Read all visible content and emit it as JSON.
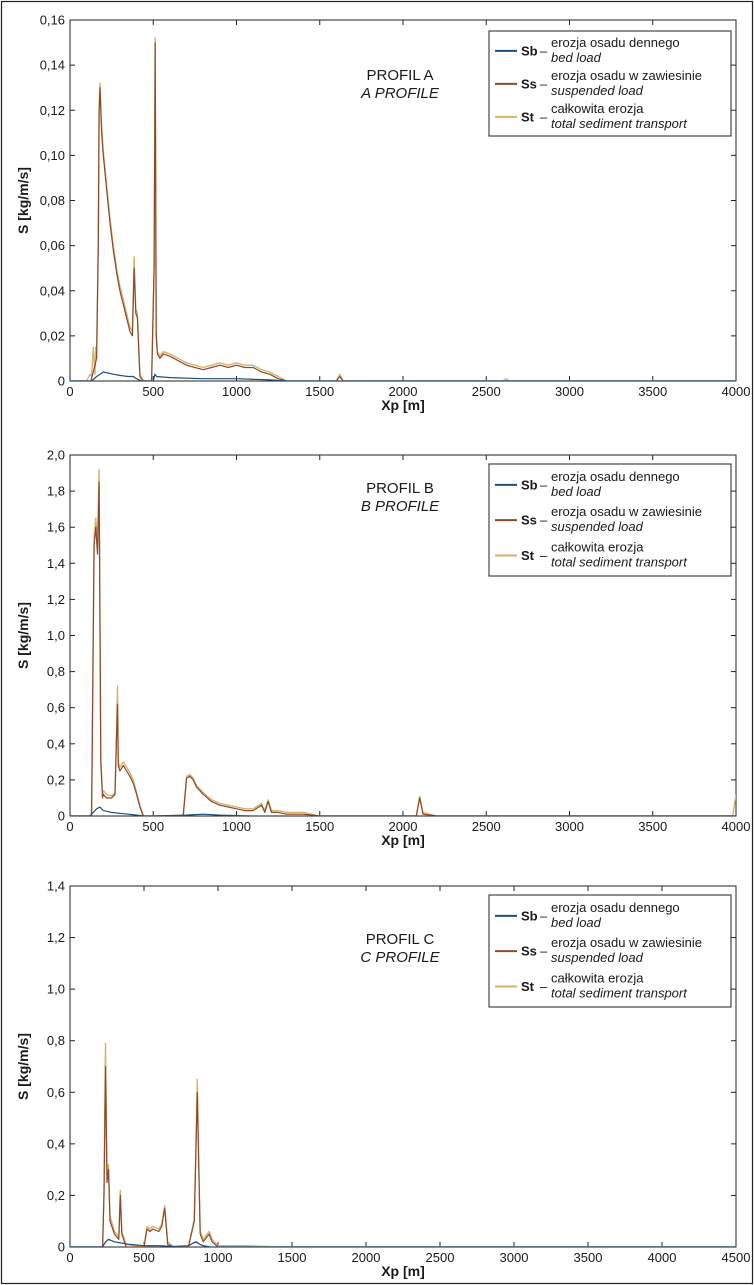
{
  "chart_data": [
    {
      "type": "line",
      "title": "PROFIL A",
      "subtitle": "A PROFILE",
      "xlabel": "Xp [m]",
      "ylabel": "S [kg/m/s]",
      "xlim": [
        0,
        4000
      ],
      "ylim": [
        0,
        0.16
      ],
      "xticks": [
        "0",
        "500",
        "1000",
        "1500",
        "2000",
        "2500",
        "3000",
        "3500",
        "4000"
      ],
      "yticks": [
        "0",
        "0,02",
        "0,04",
        "0,06",
        "0,08",
        "0,10",
        "0,12",
        "0,14",
        "0,16"
      ],
      "grid": false,
      "legend_position": "top-right",
      "legend": [
        {
          "code": "Sb",
          "dash": "–",
          "label": "erozja osadu dennego",
          "label_en": "bed load"
        },
        {
          "code": "Ss",
          "dash": "–",
          "label": "erozja osadu w zawiesinie",
          "label_en": "suspended load"
        },
        {
          "code": "St",
          "dash": "–",
          "label": "całkowita erozja",
          "label_en": "total sediment transport"
        }
      ],
      "series": [
        {
          "key": "Sb",
          "color": "#1f4e79",
          "x": [
            0,
            130,
            160,
            180,
            200,
            260,
            300,
            350,
            380,
            400,
            430,
            500,
            510,
            520,
            600,
            800,
            1000,
            1200,
            1300,
            1500,
            2000,
            4000
          ],
          "y": [
            0,
            0,
            0.002,
            0.003,
            0.004,
            0.003,
            0.0025,
            0.002,
            0.002,
            0.001,
            0,
            0,
            0.003,
            0.002,
            0.0015,
            0.001,
            0.001,
            0.0005,
            0,
            0,
            0,
            0
          ]
        },
        {
          "key": "Ss",
          "color": "#8b4a2f",
          "x": [
            0,
            125,
            140,
            160,
            170,
            175,
            180,
            190,
            200,
            220,
            240,
            260,
            280,
            300,
            320,
            340,
            360,
            375,
            385,
            395,
            405,
            420,
            440,
            490,
            505,
            512,
            518,
            525,
            540,
            560,
            600,
            650,
            700,
            750,
            800,
            850,
            900,
            950,
            1000,
            1050,
            1100,
            1150,
            1200,
            1250,
            1300,
            1400,
            1500,
            1600,
            1620,
            1640,
            1660,
            1700,
            2000,
            4000
          ],
          "y": [
            0,
            0,
            0.004,
            0.01,
            0.06,
            0.12,
            0.13,
            0.11,
            0.1,
            0.085,
            0.07,
            0.058,
            0.048,
            0.04,
            0.034,
            0.028,
            0.022,
            0.02,
            0.05,
            0.03,
            0.028,
            0.002,
            0,
            0,
            0.05,
            0.15,
            0.02,
            0.012,
            0.01,
            0.012,
            0.011,
            0.009,
            0.007,
            0.006,
            0.005,
            0.006,
            0.007,
            0.006,
            0.007,
            0.006,
            0.006,
            0.004,
            0.003,
            0.001,
            0,
            0,
            0,
            0,
            0.002,
            0,
            0,
            0,
            0,
            0
          ]
        },
        {
          "key": "St",
          "color": "#d4b36a",
          "x": [
            0,
            100,
            120,
            130,
            140,
            150,
            155,
            160,
            170,
            175,
            180,
            190,
            200,
            220,
            240,
            260,
            280,
            300,
            320,
            340,
            360,
            375,
            385,
            395,
            405,
            420,
            440,
            490,
            505,
            512,
            518,
            525,
            540,
            560,
            600,
            650,
            700,
            750,
            800,
            850,
            900,
            950,
            1000,
            1050,
            1100,
            1150,
            1200,
            1250,
            1300,
            1400,
            1500,
            1600,
            1620,
            1640,
            1660,
            1700,
            2000,
            2600,
            2620,
            2640,
            4000
          ],
          "y": [
            0,
            0,
            0.003,
            0.002,
            0.015,
            0.003,
            0.015,
            0.01,
            0.065,
            0.12,
            0.132,
            0.113,
            0.102,
            0.087,
            0.072,
            0.06,
            0.05,
            0.042,
            0.036,
            0.03,
            0.024,
            0.022,
            0.055,
            0.032,
            0.03,
            0.003,
            0,
            0,
            0.052,
            0.152,
            0.022,
            0.013,
            0.011,
            0.013,
            0.012,
            0.01,
            0.008,
            0.007,
            0.006,
            0.007,
            0.008,
            0.007,
            0.008,
            0.007,
            0.007,
            0.005,
            0.004,
            0.002,
            0,
            0,
            0,
            0,
            0.003,
            0,
            0,
            0,
            0,
            0,
            0.001,
            0,
            0
          ]
        }
      ]
    },
    {
      "type": "line",
      "title": "PROFIL B",
      "subtitle": "B PROFILE",
      "xlabel": "Xp [m]",
      "ylabel": "S [kg/m/s]",
      "xlim": [
        0,
        4000
      ],
      "ylim": [
        0,
        2.0
      ],
      "xticks": [
        "0",
        "500",
        "1000",
        "1500",
        "2000",
        "2500",
        "3000",
        "3500",
        "4000"
      ],
      "yticks": [
        "0",
        "0,2",
        "0,4",
        "0,6",
        "0,8",
        "1,0",
        "1,2",
        "1,4",
        "1,6",
        "1,8",
        "2,0"
      ],
      "grid": false,
      "legend_position": "top-right",
      "legend": [
        {
          "code": "Sb",
          "dash": "–",
          "label": "erozja osadu dennego",
          "label_en": "bed load"
        },
        {
          "code": "Ss",
          "dash": "–",
          "label": "erozja osadu w zawiesinie",
          "label_en": "suspended load"
        },
        {
          "code": "St",
          "dash": "–",
          "label": "całkowita erozja",
          "label_en": "total sediment transport"
        }
      ],
      "series": [
        {
          "key": "Sb",
          "color": "#1f4e79",
          "x": [
            0,
            120,
            140,
            160,
            180,
            200,
            250,
            300,
            350,
            400,
            450,
            500,
            700,
            800,
            900,
            1000,
            1100,
            4000
          ],
          "y": [
            0,
            0,
            0.02,
            0.04,
            0.05,
            0.03,
            0.02,
            0.015,
            0.01,
            0.005,
            0,
            0,
            0.005,
            0.01,
            0.005,
            0.002,
            0,
            0
          ]
        },
        {
          "key": "Ss",
          "color": "#8b4a2f",
          "x": [
            0,
            130,
            145,
            155,
            165,
            175,
            185,
            195,
            200,
            220,
            250,
            270,
            280,
            285,
            290,
            300,
            320,
            340,
            360,
            380,
            400,
            420,
            440,
            680,
            700,
            720,
            740,
            760,
            780,
            800,
            850,
            900,
            950,
            1000,
            1050,
            1100,
            1150,
            1170,
            1190,
            1210,
            1250,
            1300,
            1400,
            1500,
            2000,
            2080,
            2100,
            2120,
            2200,
            4000
          ],
          "y": [
            0,
            0,
            1.5,
            1.6,
            1.45,
            1.85,
            0.3,
            0.1,
            0.12,
            0.1,
            0.1,
            0.12,
            0.45,
            0.62,
            0.28,
            0.25,
            0.28,
            0.25,
            0.22,
            0.18,
            0.12,
            0.05,
            0,
            0,
            0.21,
            0.22,
            0.2,
            0.16,
            0.14,
            0.12,
            0.08,
            0.06,
            0.05,
            0.04,
            0.03,
            0.03,
            0.06,
            0.02,
            0.08,
            0.02,
            0.02,
            0.01,
            0.01,
            0,
            0,
            0,
            0.1,
            0.01,
            0,
            0
          ]
        },
        {
          "key": "St",
          "color": "#d4b36a",
          "x": [
            0,
            125,
            130,
            145,
            155,
            165,
            175,
            185,
            195,
            200,
            220,
            250,
            270,
            280,
            285,
            290,
            300,
            320,
            340,
            360,
            380,
            400,
            420,
            440,
            680,
            700,
            720,
            740,
            760,
            780,
            800,
            850,
            900,
            950,
            1000,
            1050,
            1100,
            1150,
            1170,
            1190,
            1210,
            1250,
            1300,
            1400,
            1500,
            2000,
            2080,
            2100,
            2120,
            2200,
            2500,
            3000,
            3500,
            3980,
            4000
          ],
          "y": [
            0,
            0,
            0.03,
            1.55,
            1.65,
            1.5,
            1.92,
            0.32,
            0.12,
            0.14,
            0.12,
            0.11,
            0.13,
            0.48,
            0.72,
            0.3,
            0.27,
            0.3,
            0.27,
            0.24,
            0.2,
            0.13,
            0.06,
            0,
            0,
            0.22,
            0.23,
            0.21,
            0.17,
            0.15,
            0.13,
            0.09,
            0.07,
            0.06,
            0.05,
            0.04,
            0.04,
            0.07,
            0.03,
            0.09,
            0.03,
            0.03,
            0.02,
            0.02,
            0,
            0,
            0,
            0.11,
            0.02,
            0,
            0,
            0,
            0,
            0,
            0.12
          ]
        }
      ]
    },
    {
      "type": "line",
      "title": "PROFIL C",
      "subtitle": "C PROFILE",
      "xlabel": "Xp [m]",
      "ylabel": "S [kg/m/s]",
      "xlim": [
        0,
        4500
      ],
      "ylim": [
        0,
        1.4
      ],
      "xticks": [
        "0",
        "500",
        "1000",
        "1500",
        "2000",
        "2500",
        "3000",
        "3500",
        "4000",
        "4500"
      ],
      "yticks": [
        "0",
        "0,2",
        "0,4",
        "0,6",
        "0,8",
        "1,0",
        "1,2",
        "1,4"
      ],
      "grid": false,
      "legend_position": "top-right",
      "legend": [
        {
          "code": "Sb",
          "dash": "–",
          "label": "erozja osadu dennego",
          "label_en": "bed load"
        },
        {
          "code": "Ss",
          "dash": "–",
          "label": "erozja osadu w zawiesinie",
          "label_en": "suspended load"
        },
        {
          "code": "St",
          "dash": "–",
          "label": "całkowita erozja",
          "label_en": "total sediment transport"
        }
      ],
      "series": [
        {
          "key": "Sb",
          "color": "#1f4e79",
          "x": [
            0,
            220,
            240,
            260,
            300,
            350,
            400,
            500,
            600,
            700,
            800,
            850,
            880,
            900,
            950,
            1000,
            4500
          ],
          "y": [
            0,
            0,
            0.02,
            0.03,
            0.02,
            0.015,
            0.01,
            0.005,
            0.005,
            0.002,
            0.005,
            0.02,
            0.01,
            0.005,
            0,
            0,
            0
          ]
        },
        {
          "key": "Ss",
          "color": "#8b4a2f",
          "x": [
            0,
            220,
            230,
            240,
            250,
            260,
            270,
            300,
            330,
            340,
            350,
            380,
            500,
            520,
            540,
            560,
            600,
            620,
            640,
            660,
            700,
            800,
            840,
            860,
            870,
            880,
            900,
            940,
            960,
            1000,
            4500
          ],
          "y": [
            0,
            0,
            0.2,
            0.7,
            0.25,
            0.3,
            0.1,
            0.05,
            0.03,
            0.2,
            0.05,
            0,
            0,
            0.07,
            0.06,
            0.07,
            0.06,
            0.08,
            0.15,
            0.01,
            0,
            0,
            0.1,
            0.6,
            0.3,
            0.05,
            0.02,
            0.05,
            0.02,
            0,
            0
          ]
        },
        {
          "key": "St",
          "color": "#d4b36a",
          "x": [
            0,
            220,
            230,
            240,
            250,
            260,
            270,
            300,
            330,
            340,
            350,
            380,
            500,
            520,
            540,
            560,
            600,
            620,
            640,
            660,
            700,
            800,
            840,
            860,
            870,
            880,
            900,
            940,
            960,
            1000,
            1200,
            1400,
            4500
          ],
          "y": [
            0,
            0,
            0.22,
            0.79,
            0.28,
            0.32,
            0.12,
            0.06,
            0.04,
            0.22,
            0.06,
            0.01,
            0,
            0.08,
            0.07,
            0.08,
            0.07,
            0.09,
            0.16,
            0.02,
            0,
            0,
            0.11,
            0.65,
            0.32,
            0.06,
            0.03,
            0.06,
            0.03,
            0.005,
            0.005,
            0,
            0
          ]
        }
      ]
    }
  ]
}
